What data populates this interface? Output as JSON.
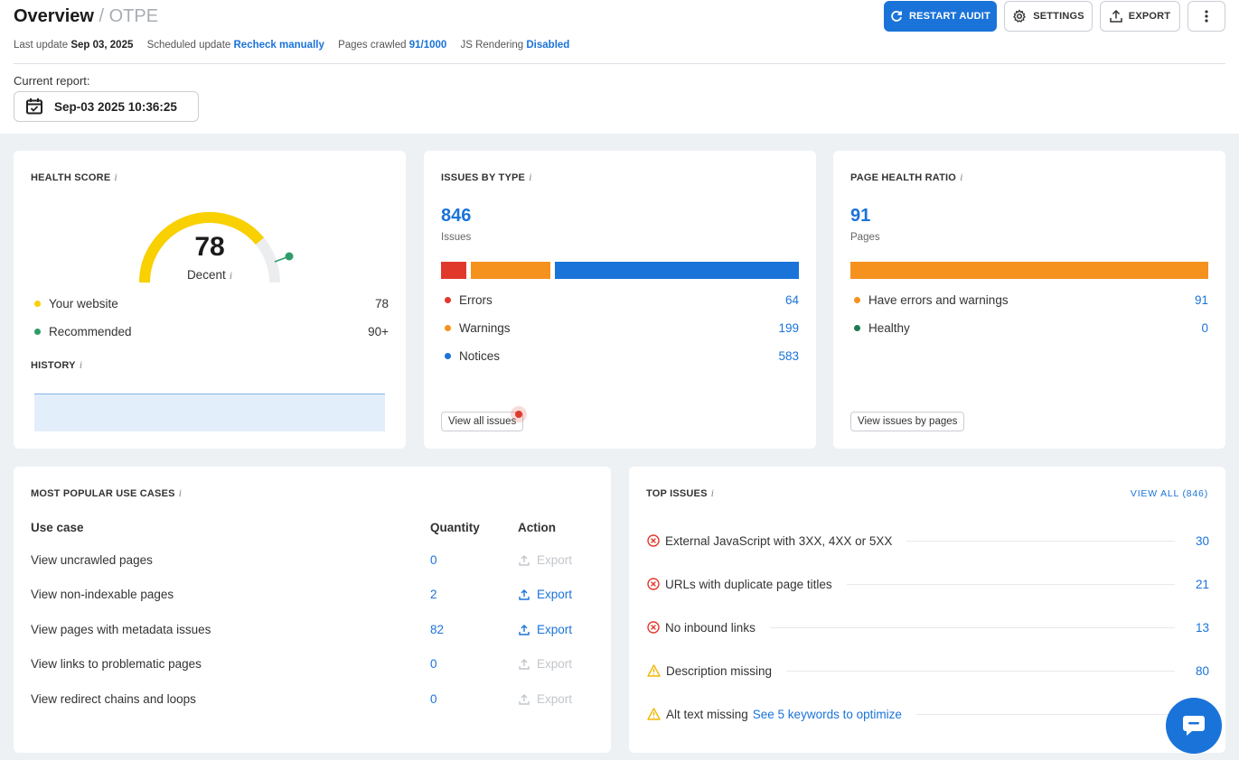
{
  "header": {
    "title": "Overview",
    "subtitle": "/ OTPE",
    "last_update_label": "Last update",
    "last_update_value": "Sep 03, 2025",
    "scheduled_label": "Scheduled update",
    "scheduled_value": "Recheck manually",
    "pages_label": "Pages crawled",
    "pages_value": "91/1000",
    "js_label": "JS Rendering",
    "js_value": "Disabled",
    "current_report_label": "Current report:",
    "current_report_value": "Sep-03 2025 10:36:25"
  },
  "toolbar": {
    "restart_label": "RESTART AUDIT",
    "settings_label": "SETTINGS",
    "export_label": "EXPORT"
  },
  "health": {
    "title": "HEALTH SCORE",
    "score": "78",
    "score_fraction": 0.78,
    "rating": "Decent",
    "your_label": "Your website",
    "your_value": "78",
    "rec_label": "Recommended",
    "rec_value": "90+",
    "history_title": "HISTORY"
  },
  "issues_type": {
    "title": "ISSUES BY TYPE",
    "total": "846",
    "total_label": "Issues",
    "errors_label": "Errors",
    "errors_value": "64",
    "warnings_label": "Warnings",
    "warnings_value": "199",
    "notices_label": "Notices",
    "notices_value": "583",
    "button": "View all issues"
  },
  "page_health": {
    "title": "PAGE HEALTH RATIO",
    "total": "91",
    "total_label": "Pages",
    "have_label": "Have errors and warnings",
    "have_value": "91",
    "healthy_label": "Healthy",
    "healthy_value": "0",
    "button": "View issues by pages"
  },
  "use_cases": {
    "title": "MOST POPULAR USE CASES",
    "col_use_case": "Use case",
    "col_quantity": "Quantity",
    "col_action": "Action",
    "rows": [
      {
        "label": "View uncrawled pages",
        "qty": "0",
        "action": "Export",
        "enabled": false
      },
      {
        "label": "View non-indexable pages",
        "qty": "2",
        "action": "Export",
        "enabled": true
      },
      {
        "label": "View pages with metadata issues",
        "qty": "82",
        "action": "Export",
        "enabled": true
      },
      {
        "label": "View links to problematic pages",
        "qty": "0",
        "action": "Export",
        "enabled": false
      },
      {
        "label": "View redirect chains and loops",
        "qty": "0",
        "action": "Export",
        "enabled": false
      }
    ]
  },
  "top_issues": {
    "title": "TOP ISSUES",
    "view_all": "VIEW ALL (846)",
    "items": [
      {
        "type": "error",
        "label": "External JavaScript with 3XX, 4XX or 5XX",
        "count": "30"
      },
      {
        "type": "error",
        "label": "URLs with duplicate page titles",
        "count": "21"
      },
      {
        "type": "error",
        "label": "No inbound links",
        "count": "13"
      },
      {
        "type": "warning",
        "label": "Description missing",
        "count": "80"
      },
      {
        "type": "warning",
        "label": "Alt text missing",
        "extra": "See 5 keywords to optimize",
        "count": ""
      }
    ]
  },
  "colors": {
    "accent": "#1a73d9",
    "error": "#e0392c",
    "warning": "#f5921e",
    "notice": "#1a73d9",
    "gauge": "#f9d000",
    "recommended": "#2e9c6a"
  },
  "icons": [
    "refresh-icon",
    "gear-icon",
    "upload-icon",
    "more-vertical-icon",
    "calendar-icon",
    "info-icon",
    "error-circle-icon",
    "warning-triangle-icon",
    "chat-icon"
  ]
}
